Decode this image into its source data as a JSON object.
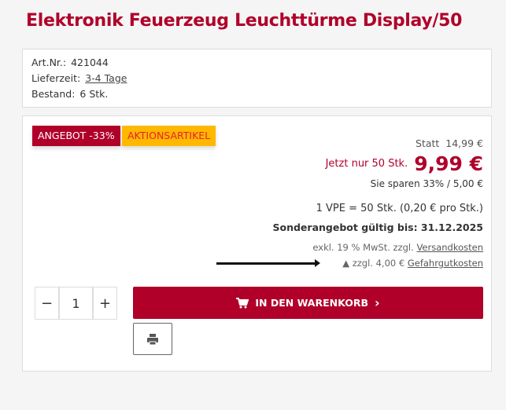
{
  "product": {
    "title": "Elektronik Feuerzeug Leuchttürme Display/50"
  },
  "info": {
    "art_label": "Art.Nr.:",
    "art_value": "421044",
    "delivery_label": "Lieferzeit:",
    "delivery_value": "3-4 Tage",
    "stock_label": "Bestand:",
    "stock_value": "6 Stk."
  },
  "badges": {
    "offer": "ANGEBOT -33%",
    "action": "AKTIONSARTIKEL"
  },
  "pricing": {
    "statt_label": "Statt",
    "old_price": "14,99 €",
    "now_label": "Jetzt nur 50 Stk.",
    "price": "9,99 €",
    "savings": "Sie sparen 33% / 5,00 €",
    "vpe": "1 VPE = 50 Stk. (0,20 € pro Stk.)",
    "valid": "Sonderangebot gültig bis: 31.12.2025",
    "tax_text": "exkl. 19 % MwSt. zzgl.",
    "shipping_link": "Versandkosten",
    "hazard_text": "zzgl. 4,00 €",
    "hazard_link": "Gefahrgutkosten"
  },
  "cart": {
    "minus": "−",
    "quantity": "1",
    "plus": "+",
    "add_label": "IN DEN WARENKORB",
    "chevron": "›"
  },
  "icons": {
    "cart": "cart-icon",
    "print": "print-icon",
    "warning": "warning-icon"
  },
  "colors": {
    "brand": "#b0002a",
    "badge_yellow": "#ffb800"
  }
}
